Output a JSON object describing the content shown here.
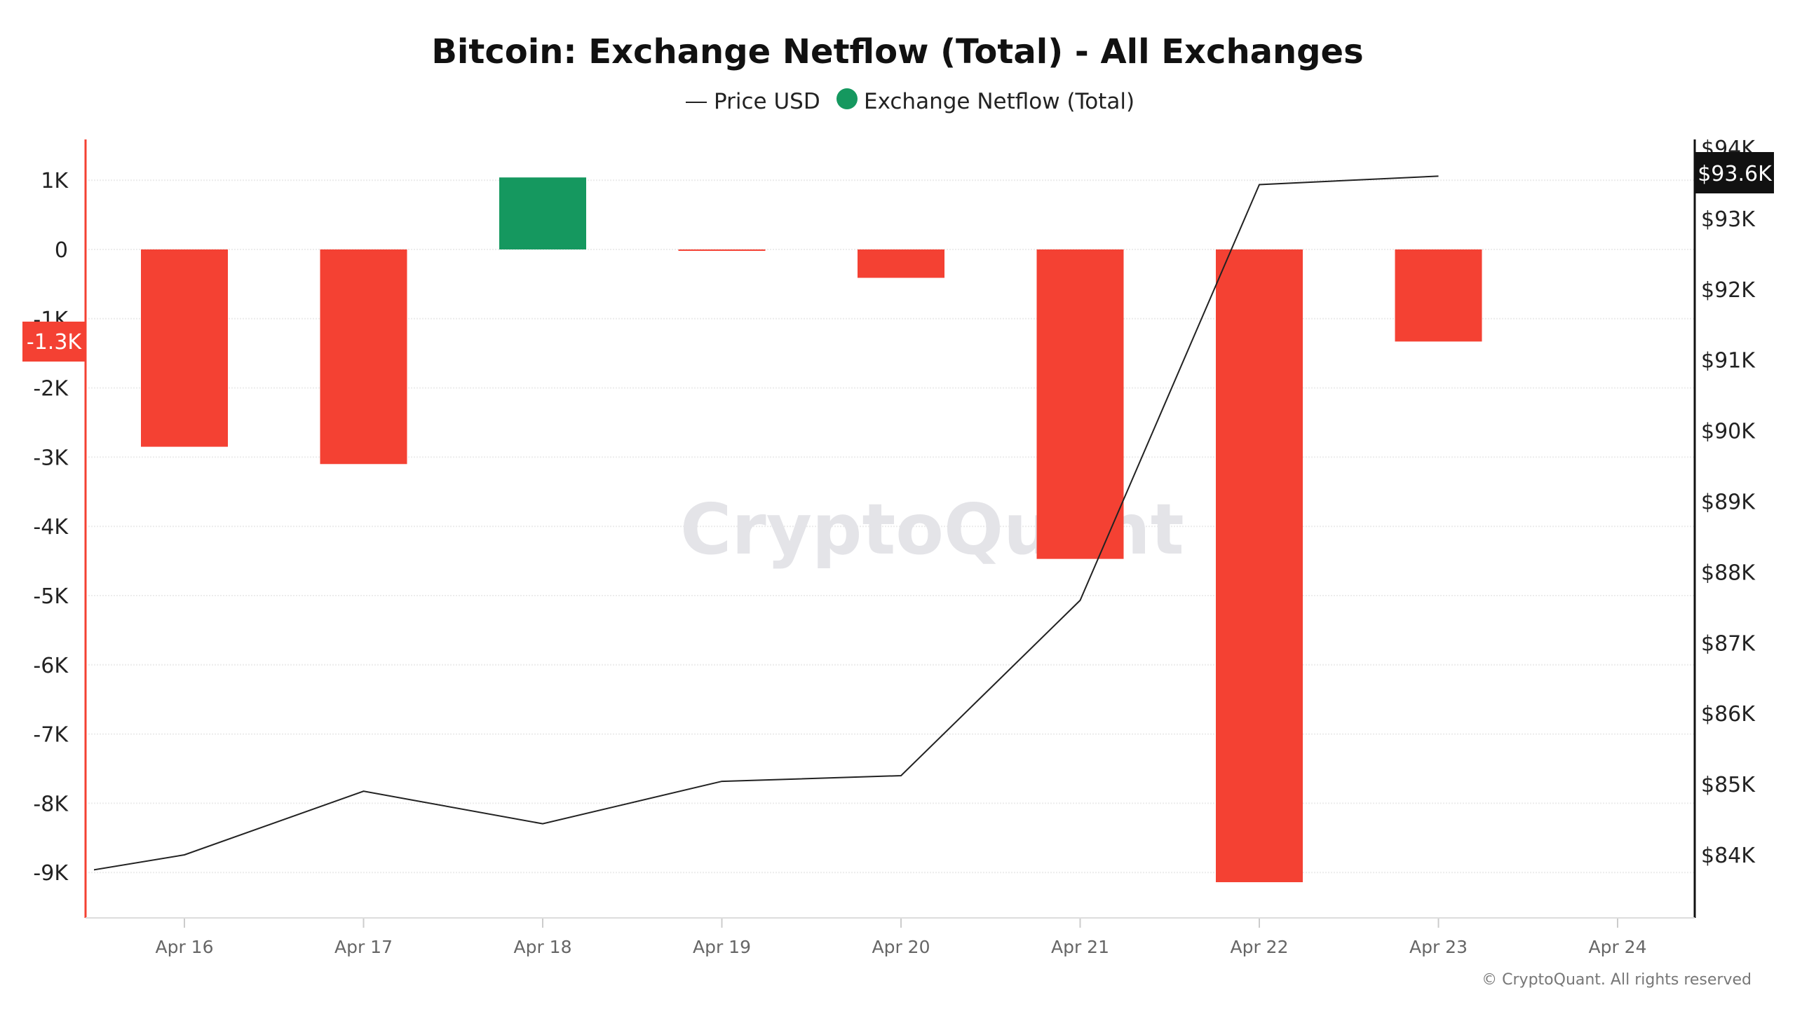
{
  "chart_data": {
    "type": "bar+line",
    "title": "Bitcoin: Exchange Netflow (Total) - All Exchanges",
    "legend": {
      "placement": "top-center",
      "entries": [
        "Price USD",
        "Exchange Netflow (Total)"
      ]
    },
    "categories": [
      "Apr 16",
      "Apr 17",
      "Apr 18",
      "Apr 19",
      "Apr 20",
      "Apr 21",
      "Apr 22",
      "Apr 23",
      "Apr 24"
    ],
    "series": [
      {
        "name": "Exchange Netflow (Total)",
        "type": "bar",
        "axis": "left",
        "x": [
          "Apr 16",
          "Apr 17",
          "Apr 18",
          "Apr 19",
          "Apr 20",
          "Apr 21",
          "Apr 22",
          "Apr 23"
        ],
        "values": [
          -2850,
          -3100,
          1040,
          -20,
          -410,
          -4470,
          -9140,
          -1330
        ]
      },
      {
        "name": "Price USD",
        "type": "line",
        "axis": "right",
        "x": [
          "Apr 15",
          "Apr 16",
          "Apr 17",
          "Apr 18",
          "Apr 19",
          "Apr 20",
          "Apr 21",
          "Apr 22",
          "Apr 23"
        ],
        "values": [
          83580,
          84000,
          84900,
          84440,
          85040,
          85120,
          87600,
          93480,
          93600
        ]
      }
    ],
    "left_axis": {
      "ticks": [
        "1K",
        "0",
        "-1K",
        "-2K",
        "-3K",
        "-4K",
        "-5K",
        "-6K",
        "-7K",
        "-8K",
        "-9K"
      ],
      "tick_values": [
        1000,
        0,
        -1000,
        -2000,
        -3000,
        -4000,
        -5000,
        -6000,
        -7000,
        -8000,
        -9000
      ]
    },
    "right_axis": {
      "ticks": [
        "$94K",
        "$93K",
        "$92K",
        "$91K",
        "$90K",
        "$89K",
        "$88K",
        "$87K",
        "$86K",
        "$85K",
        "$84K"
      ],
      "tick_values": [
        94000,
        93000,
        92000,
        91000,
        90000,
        89000,
        88000,
        87000,
        86000,
        85000,
        84000
      ]
    },
    "current_labels": {
      "netflow": "-1.3K",
      "price": "$93.6K"
    },
    "colors": {
      "positive": "#15985f",
      "negative": "#f44133",
      "price_line": "#222222",
      "price_badge": "#111111"
    },
    "grid": true,
    "watermark": "CryptoQuant",
    "footer": "© CryptoQuant. All rights reserved"
  }
}
